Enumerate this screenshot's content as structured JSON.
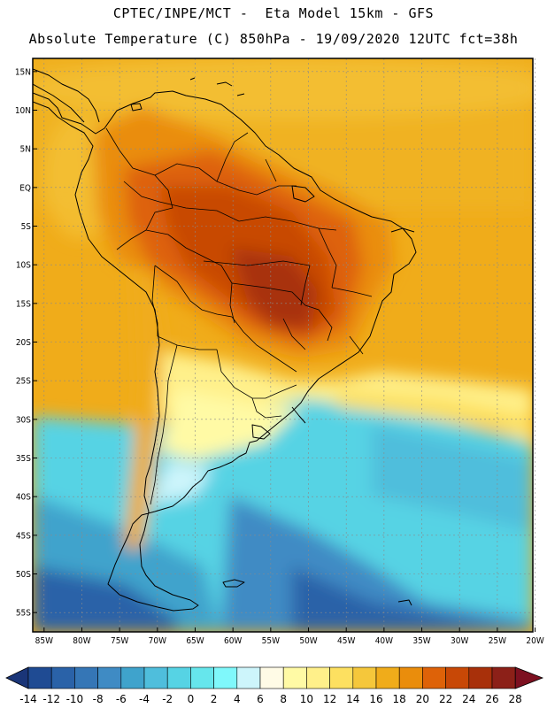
{
  "header": {
    "title_line1": "CPTEC/INPE/MCT -  Eta Model 15km - GFS",
    "title_line2": "Absolute Temperature (C) 850hPa - 19/09/2020 12UTC fct=38h"
  },
  "axes": {
    "lat_labels": [
      "15N",
      "10N",
      "5N",
      "EQ",
      "5S",
      "10S",
      "15S",
      "20S",
      "25S",
      "30S",
      "35S",
      "40S",
      "45S",
      "50S",
      "55S"
    ],
    "lon_labels": [
      "85W",
      "80W",
      "75W",
      "70W",
      "65W",
      "60W",
      "55W",
      "50W",
      "45W",
      "40W",
      "35W",
      "30W",
      "25W",
      "20W"
    ],
    "lat_values": [
      15,
      10,
      5,
      0,
      -5,
      -10,
      -15,
      -20,
      -25,
      -30,
      -35,
      -40,
      -45,
      -50,
      -55
    ],
    "lon_values": [
      -85,
      -80,
      -75,
      -70,
      -65,
      -60,
      -55,
      -50,
      -45,
      -40,
      -35,
      -30,
      -25,
      -20
    ],
    "lat_range": [
      -57.5,
      16.7
    ],
    "lon_range": [
      -86.5,
      -20.3
    ],
    "grid": true
  },
  "colorbar": {
    "labels": [
      "-14",
      "-12",
      "-10",
      "-8",
      "-6",
      "-4",
      "-2",
      "0",
      "2",
      "4",
      "6",
      "8",
      "10",
      "12",
      "14",
      "16",
      "18",
      "20",
      "22",
      "24",
      "26",
      "28"
    ],
    "colors": [
      "#1a3578",
      "#1f4b93",
      "#2a62a8",
      "#3576b6",
      "#3f8bc4",
      "#3fa3cc",
      "#4fbedc",
      "#56d3e4",
      "#66e6ec",
      "#7ff8fb",
      "#cdf5fb",
      "#fffbe6",
      "#fffaa5",
      "#fff08a",
      "#fde060",
      "#f5c73b",
      "#f0ac1a",
      "#ea8d0c",
      "#de6208",
      "#c84806",
      "#a8300a",
      "#8c2018",
      "#7d1020"
    ]
  },
  "colors": {
    "frame": "#000000",
    "coast": "#000000",
    "grid": "#8a8a8a"
  }
}
